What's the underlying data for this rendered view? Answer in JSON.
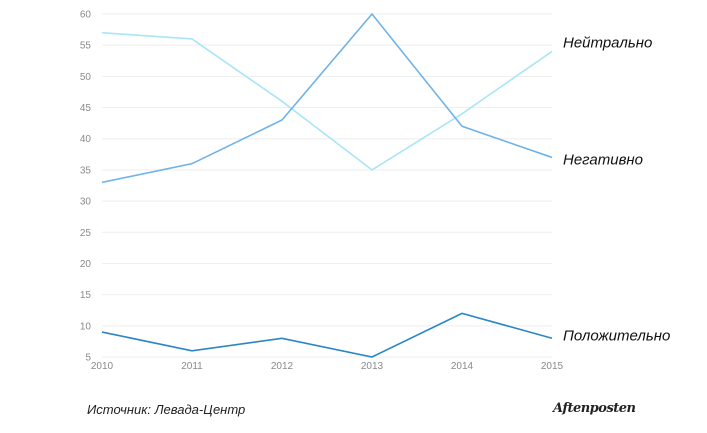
{
  "chart_data": {
    "type": "line",
    "x": [
      2010,
      2011,
      2012,
      2013,
      2014,
      2015
    ],
    "ylim": [
      5,
      60
    ],
    "yticks": [
      5,
      10,
      15,
      20,
      25,
      30,
      35,
      40,
      45,
      50,
      55,
      60
    ],
    "grid": true,
    "legend": "inline-right",
    "series": [
      {
        "name": "Нейтрально",
        "color": "#a8e6f7",
        "values": [
          57,
          56,
          46,
          35,
          44,
          54
        ]
      },
      {
        "name": "Негативно",
        "color": "#6db2ea",
        "values": [
          33,
          36,
          43,
          60,
          42,
          37
        ]
      },
      {
        "name": "Положительно",
        "color": "#2a86c4",
        "values": [
          9,
          6,
          8,
          5,
          12,
          8
        ]
      }
    ]
  },
  "footer": {
    "source": "Источник: Левада-Центр",
    "logo": "Aftenposten"
  }
}
